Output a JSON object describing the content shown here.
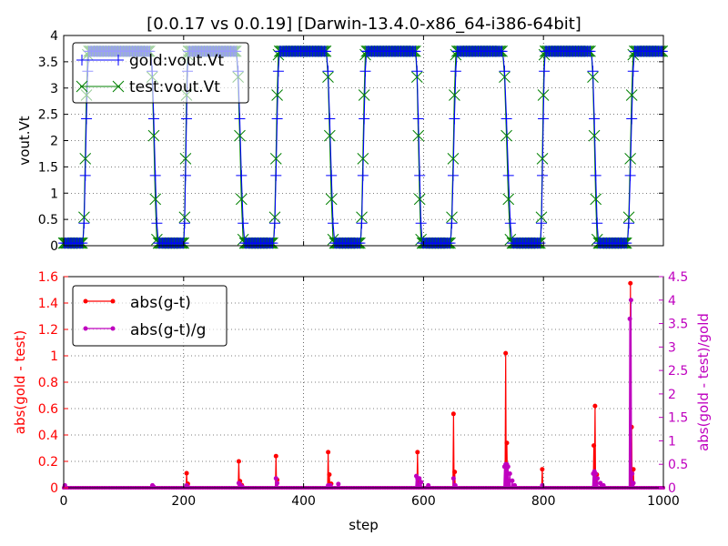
{
  "colors": {
    "gold": "#0000ff",
    "test": "#008000",
    "abs": "#ff0000",
    "rel": "#bf00bf",
    "grid": "#000000"
  },
  "chart_data": [
    {
      "type": "line",
      "title": "[0.0.17 vs 0.0.19] [Darwin-13.4.0-x86_64-i386-64bit]",
      "xlabel": "",
      "ylabel": "vout.Vt",
      "xlim": [
        0,
        1000
      ],
      "ylim": [
        0,
        4
      ],
      "xticks": [
        0,
        200,
        400,
        600,
        800,
        1000
      ],
      "yticks": [
        "0",
        "0.5",
        "1",
        "1.5",
        "2",
        "2.5",
        "3",
        "3.5",
        "4"
      ],
      "grid": true,
      "legend": "top-left",
      "waveform": {
        "high": 3.7,
        "low": 0.05,
        "transitions": [
          {
            "start": 32,
            "end": 42,
            "dir": "up"
          },
          {
            "start": 145,
            "end": 158,
            "dir": "down"
          },
          {
            "start": 200,
            "end": 208,
            "dir": "up"
          },
          {
            "start": 288,
            "end": 302,
            "dir": "down"
          },
          {
            "start": 350,
            "end": 360,
            "dir": "up"
          },
          {
            "start": 438,
            "end": 452,
            "dir": "down"
          },
          {
            "start": 495,
            "end": 505,
            "dir": "up"
          },
          {
            "start": 587,
            "end": 598,
            "dir": "down"
          },
          {
            "start": 645,
            "end": 656,
            "dir": "up"
          },
          {
            "start": 732,
            "end": 748,
            "dir": "down"
          },
          {
            "start": 795,
            "end": 803,
            "dir": "up"
          },
          {
            "start": 880,
            "end": 892,
            "dir": "down"
          },
          {
            "start": 940,
            "end": 952,
            "dir": "up"
          }
        ]
      },
      "series": [
        {
          "name": "gold:vout.Vt",
          "marker": "plus"
        },
        {
          "name": "test:vout.Vt",
          "marker": "x"
        }
      ]
    },
    {
      "type": "line",
      "title": "",
      "xlabel": "step",
      "ylabel": "abs(gold - test)",
      "ylabel_right": "abs(gold - test)/gold",
      "xlim": [
        0,
        1000
      ],
      "ylim": [
        0,
        1.6
      ],
      "ylim_right": [
        0,
        4.5
      ],
      "xticks": [
        "0",
        "200",
        "400",
        "600",
        "800",
        "1000"
      ],
      "yticks": [
        "0",
        "0.2",
        "0.4",
        "0.6",
        "0.8",
        "1",
        "1.2",
        "1.4",
        "1.6"
      ],
      "yticks_right": [
        "0",
        "0.5",
        "1",
        "1.5",
        "2",
        "2.5",
        "3",
        "3.5",
        "4",
        "4.5"
      ],
      "grid": true,
      "legend": "top-left",
      "series": [
        {
          "name": "abs(g-t)",
          "axis": "left",
          "spikes": [
            {
              "x": 148,
              "y": 0.015
            },
            {
              "x": 205,
              "y": 0.11
            },
            {
              "x": 207,
              "y": 0.03
            },
            {
              "x": 292,
              "y": 0.2
            },
            {
              "x": 294,
              "y": 0.05
            },
            {
              "x": 297,
              "y": 0.02
            },
            {
              "x": 354,
              "y": 0.24
            },
            {
              "x": 356,
              "y": 0.06
            },
            {
              "x": 441,
              "y": 0.27
            },
            {
              "x": 443,
              "y": 0.1
            },
            {
              "x": 446,
              "y": 0.03
            },
            {
              "x": 590,
              "y": 0.27
            },
            {
              "x": 592,
              "y": 0.06
            },
            {
              "x": 650,
              "y": 0.56
            },
            {
              "x": 652,
              "y": 0.12
            },
            {
              "x": 737,
              "y": 1.02
            },
            {
              "x": 739,
              "y": 0.34
            },
            {
              "x": 742,
              "y": 0.05
            },
            {
              "x": 798,
              "y": 0.14
            },
            {
              "x": 884,
              "y": 0.32
            },
            {
              "x": 886,
              "y": 0.62
            },
            {
              "x": 889,
              "y": 0.1
            },
            {
              "x": 945,
              "y": 1.55
            },
            {
              "x": 947,
              "y": 0.46
            },
            {
              "x": 950,
              "y": 0.14
            }
          ]
        },
        {
          "name": "abs(g-t)/g",
          "axis": "right",
          "spikes": [
            {
              "x": 2,
              "y": 0.05
            },
            {
              "x": 148,
              "y": 0.05
            },
            {
              "x": 150,
              "y": 0.02
            },
            {
              "x": 205,
              "y": 0.05
            },
            {
              "x": 207,
              "y": 0.02
            },
            {
              "x": 292,
              "y": 0.1
            },
            {
              "x": 295,
              "y": 0.05
            },
            {
              "x": 298,
              "y": 0.02
            },
            {
              "x": 354,
              "y": 0.2
            },
            {
              "x": 356,
              "y": 0.1
            },
            {
              "x": 441,
              "y": 0.05
            },
            {
              "x": 445,
              "y": 0.05
            },
            {
              "x": 458,
              "y": 0.08
            },
            {
              "x": 588,
              "y": 0.25
            },
            {
              "x": 590,
              "y": 0.2
            },
            {
              "x": 593,
              "y": 0.2
            },
            {
              "x": 596,
              "y": 0.12
            },
            {
              "x": 608,
              "y": 0.05
            },
            {
              "x": 650,
              "y": 0.2
            },
            {
              "x": 653,
              "y": 0.05
            },
            {
              "x": 735,
              "y": 0.45
            },
            {
              "x": 737,
              "y": 0.5
            },
            {
              "x": 739,
              "y": 0.5
            },
            {
              "x": 741,
              "y": 0.45
            },
            {
              "x": 744,
              "y": 0.3
            },
            {
              "x": 748,
              "y": 0.15
            },
            {
              "x": 752,
              "y": 0.05
            },
            {
              "x": 798,
              "y": 0.05
            },
            {
              "x": 883,
              "y": 0.3
            },
            {
              "x": 885,
              "y": 0.35
            },
            {
              "x": 887,
              "y": 0.3
            },
            {
              "x": 890,
              "y": 0.2
            },
            {
              "x": 895,
              "y": 0.1
            },
            {
              "x": 900,
              "y": 0.05
            },
            {
              "x": 944,
              "y": 3.6
            },
            {
              "x": 946,
              "y": 4.0
            },
            {
              "x": 948,
              "y": 0.3
            },
            {
              "x": 950,
              "y": 0.1
            }
          ]
        }
      ]
    }
  ]
}
